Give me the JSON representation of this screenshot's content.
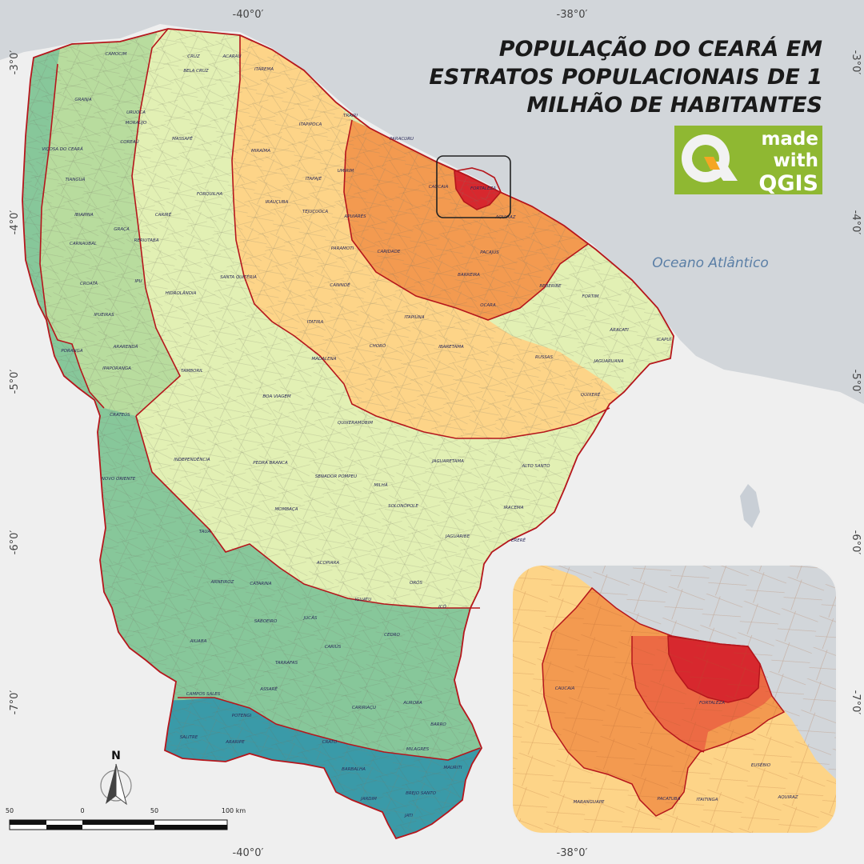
{
  "title": {
    "line1": "POPULAÇÃO DO CEARÁ EM",
    "line2": "ESTRATOS POPULACIONAIS DE 1",
    "line3": "MILHÃO DE HABITANTES"
  },
  "logo": {
    "made": "made",
    "with": "with",
    "qgis": "QGIS",
    "icon": "qgis-logo-icon"
  },
  "ocean_label": "Oceano Atlântico",
  "coords": {
    "lon_left": "-40°0′",
    "lon_right": "-38°0′",
    "lat": [
      "-3°0′",
      "-4°0′",
      "-5°0′",
      "-6°0′",
      "-7°0′"
    ]
  },
  "north_arrow": "N",
  "scale_bar": {
    "ticks": [
      "50",
      "0",
      "50",
      "100 km"
    ]
  },
  "colors": {
    "sea": "#d2d6da",
    "land": "#f1f1f1",
    "stratum_red": "#d7282e",
    "stratum_orange": "#f39a50",
    "stratum_light_orange": "#fdd488",
    "stratum_yellow": "#fff4a8",
    "stratum_pale_green": "#e2f0b4",
    "stratum_light_green": "#b8dc9e",
    "stratum_green": "#87c79a",
    "stratum_teal": "#3a9aa8",
    "border": "#b5161c"
  },
  "municipalities": {
    "camocim": "CAMOCIM",
    "cruz": "CRUZ",
    "acarau": "ACARAÚ",
    "itarema": "ITAREMA",
    "bela_cruz": "BELA CRUZ",
    "granja": "GRANJA",
    "uruoca": "URUOCA",
    "moraujo": "MORAÚJO",
    "massape": "MASSAPÊ",
    "itapipoca": "ITAPIPOCA",
    "trairi": "TRAIRI",
    "paracuru": "PARACURU",
    "vicosa": "VIÇOSA DO CEARÁ",
    "coreau": "COREAÚ",
    "tiangua": "TIANGUÁ",
    "miraima": "MIRAÍMA",
    "umirim": "UMIRIM",
    "itapaje": "ITAPAJÉ",
    "caucaia": "CAUCAIA",
    "fortaleza": "FORTALEZA",
    "forquilha": "FORQUILHA",
    "irauçuba": "IRAUÇUBA",
    "tejucuoca": "TEJUÇUOCA",
    "apuiares": "APUIARÉS",
    "aquiraz": "AQUIRAZ",
    "ibiapina": "IBIAPINA",
    "carire": "CARIRÉ",
    "graca": "GRAÇA",
    "reriutaba": "RERIUTABA",
    "carnaubal": "CARNAUBAL",
    "paramoti": "PARAMOTI",
    "caridade": "CARIDADE",
    "pacajus": "PACAJUS",
    "santa_quiteria": "SANTA QUITÉRIA",
    "barreira": "BARREIRA",
    "croata": "CROATÁ",
    "ipu": "IPU",
    "caninde": "CANINDÉ",
    "beberibe": "BEBERIBE",
    "hidrolandia": "HIDROLÂNDIA",
    "fortim": "FORTIM",
    "ocara": "OCARA",
    "ipueiras": "IPUEIRAS",
    "itatira": "ITATIRA",
    "itapiuna": "ITAPIÚNA",
    "aracati": "ARACATI",
    "icapui": "ICAPUÍ",
    "poranga": "PORANGA",
    "ararenda": "ARARENDÁ",
    "choro": "CHORÓ",
    "ibaretama": "IBARETAMA",
    "russas": "RUSSAS",
    "madalena": "MADALENA",
    "jaguaruana": "JAGUARUANA",
    "ipaporanga": "IPAPORANGA",
    "tamboril": "TAMBORIL",
    "boa_viagem": "BOA VIAGEM",
    "quixere": "QUIXERÉ",
    "crateus": "CRATEÚS",
    "quixeramobim": "QUIXERAMOBIM",
    "independencia": "INDEPENDÊNCIA",
    "jaguaretama": "JAGUARETAMA",
    "pedra_branca": "PEDRA BRANCA",
    "alto_santo": "ALTO SANTO",
    "novo_oriente": "NOVO ORIENTE",
    "senador_pompeu": "SENADOR POMPEU",
    "milha": "MILHÃ",
    "solonopole": "SOLONÓPOLE",
    "iracema": "IRACEMA",
    "mombaca": "MOMBAÇA",
    "taua": "TAUÁ",
    "jaguaribe": "JAGUARIBE",
    "erere": "ERERÊ",
    "acopiara": "ACOPIARA",
    "arneiroz": "ARNEIROZ",
    "catarina": "CATARINA",
    "oros": "ORÓS",
    "iguatu": "IGUATU",
    "ico": "ICÓ",
    "saboeiro": "SABOEIRO",
    "jucas": "JUCÁS",
    "cedro": "CEDRO",
    "aiuaba": "AIUABA",
    "carius": "CARIÚS",
    "tarrafas": "TARRAFAS",
    "assare": "ASSARÉ",
    "campos_sales": "CAMPOS SALES",
    "aurora": "AURORA",
    "caririacu": "CARIRIAÇU",
    "potengi": "POTENGI",
    "barro": "BARRO",
    "salitre": "SALITRE",
    "araripe": "ARARIPE",
    "crato": "CRATO",
    "milagres": "MILAGRES",
    "barbalha": "BARBALHA",
    "mauriti": "MAURITI",
    "brejo_santo": "BREJO SANTO",
    "jardim": "JARDIM",
    "jati": "JATI"
  },
  "inset": {
    "caucaia": "CAUCAIA",
    "fortaleza": "FORTALEZA",
    "euzebio": "EUSÉBIO",
    "maranguape": "MARANGUAPE",
    "pacatuba": "PACATUBA",
    "itaitinga": "ITAITINGA",
    "aquiraz": "AQUIRAZ"
  }
}
